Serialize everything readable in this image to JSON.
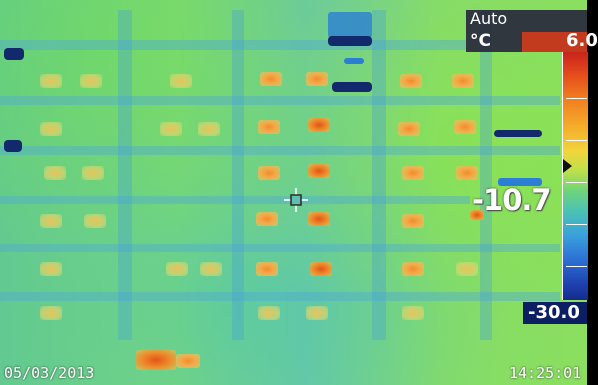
{
  "palette": {
    "range_mode": "Auto",
    "unit": "°C",
    "max_value": "6.0",
    "min_value": "-30.0",
    "colors": {
      "hot": "#c8231a",
      "warm": "#f5ac2a",
      "mid": "#6fd37b",
      "cool": "#3aa0dc",
      "cold": "#142c8a"
    }
  },
  "measurement": {
    "spot_temperature": "-10.7",
    "crosshair_icon": "crosshair-icon"
  },
  "footer": {
    "date": "05/03/2013",
    "time": "14:25:01"
  }
}
